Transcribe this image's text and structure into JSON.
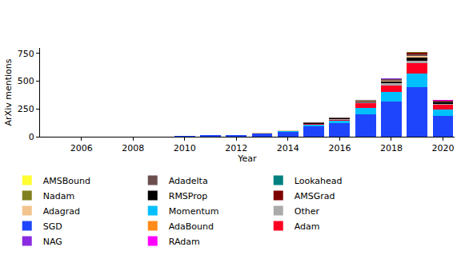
{
  "chart_data": {
    "type": "bar",
    "stacked": true,
    "x_label": "Year",
    "y_label": "ArXiv mentions",
    "x": [
      2005,
      2006,
      2007,
      2008,
      2009,
      2010,
      2011,
      2012,
      2013,
      2014,
      2015,
      2016,
      2017,
      2018,
      2019,
      2020
    ],
    "xlim": [
      2004.4,
      2020.45
    ],
    "xticks": [
      2006,
      2008,
      2010,
      2012,
      2014,
      2016,
      2018,
      2020
    ],
    "ylim": [
      0,
      800
    ],
    "yticks": [
      0,
      250,
      500,
      750
    ],
    "grid": false,
    "legend": "bottom",
    "series": [
      {
        "name": "AMSBound",
        "color": "#ffff33",
        "values": [
          0,
          0,
          0,
          0,
          0,
          0,
          0,
          0,
          0,
          0,
          0,
          0,
          0,
          0,
          1,
          1
        ]
      },
      {
        "name": "AMSGrad",
        "color": "#7f0000",
        "values": [
          0,
          0,
          0,
          0,
          0,
          0,
          0,
          0,
          0,
          0,
          0,
          0,
          0,
          5,
          10,
          5
        ]
      },
      {
        "name": "AdaBound",
        "color": "#ff8c1a",
        "values": [
          0,
          0,
          0,
          0,
          0,
          0,
          0,
          0,
          0,
          0,
          0,
          0,
          0,
          0,
          1,
          2
        ]
      },
      {
        "name": "Adadelta",
        "color": "#6b4f4f",
        "values": [
          0,
          0,
          0,
          0,
          0,
          0,
          0,
          0,
          0,
          2,
          4,
          5,
          7,
          12,
          15,
          5
        ]
      },
      {
        "name": "Adagrad",
        "color": "#f2c48d",
        "values": [
          0,
          0,
          0,
          0,
          0,
          0,
          1,
          1,
          2,
          3,
          3,
          5,
          5,
          10,
          20,
          4
        ]
      },
      {
        "name": "Adam",
        "color": "#ff0022",
        "values": [
          0,
          0,
          0,
          0,
          0,
          0,
          0,
          0,
          0,
          0,
          2,
          8,
          40,
          55,
          90,
          45
        ]
      },
      {
        "name": "Lookahead",
        "color": "#008080",
        "values": [
          0,
          0,
          0,
          0,
          0,
          0,
          0,
          0,
          0,
          0,
          0,
          0,
          0,
          0,
          0,
          1
        ]
      },
      {
        "name": "Momentum",
        "color": "#00bfff",
        "values": [
          0,
          0,
          0,
          0,
          0,
          0,
          1,
          1,
          3,
          5,
          15,
          20,
          60,
          85,
          125,
          60
        ]
      },
      {
        "name": "NAG",
        "color": "#8a2be2",
        "values": [
          0,
          0,
          0,
          0,
          0,
          0,
          0,
          0,
          0,
          0,
          0,
          1,
          2,
          3,
          5,
          2
        ]
      },
      {
        "name": "Nadam",
        "color": "#808020",
        "values": [
          0,
          0,
          0,
          0,
          0,
          0,
          0,
          0,
          0,
          0,
          0,
          0,
          1,
          2,
          2,
          1
        ]
      },
      {
        "name": "Other",
        "color": "#aaaaaa",
        "values": [
          0,
          0,
          0,
          0,
          0,
          0,
          0,
          0,
          1,
          3,
          5,
          5,
          10,
          20,
          25,
          8
        ]
      },
      {
        "name": "RAdam",
        "color": "#ff00ff",
        "values": [
          0,
          0,
          0,
          0,
          0,
          0,
          0,
          0,
          0,
          0,
          0,
          0,
          0,
          0,
          0,
          3
        ]
      },
      {
        "name": "RMSProp",
        "color": "#000000",
        "values": [
          0,
          0,
          0,
          0,
          0,
          0,
          0,
          0,
          0,
          2,
          5,
          5,
          10,
          15,
          25,
          10
        ]
      },
      {
        "name": "SGD",
        "color": "#1f45fc",
        "values": [
          0,
          1,
          1,
          1,
          2,
          4,
          12,
          12,
          28,
          42,
          95,
          125,
          200,
          320,
          445,
          185
        ]
      }
    ]
  }
}
